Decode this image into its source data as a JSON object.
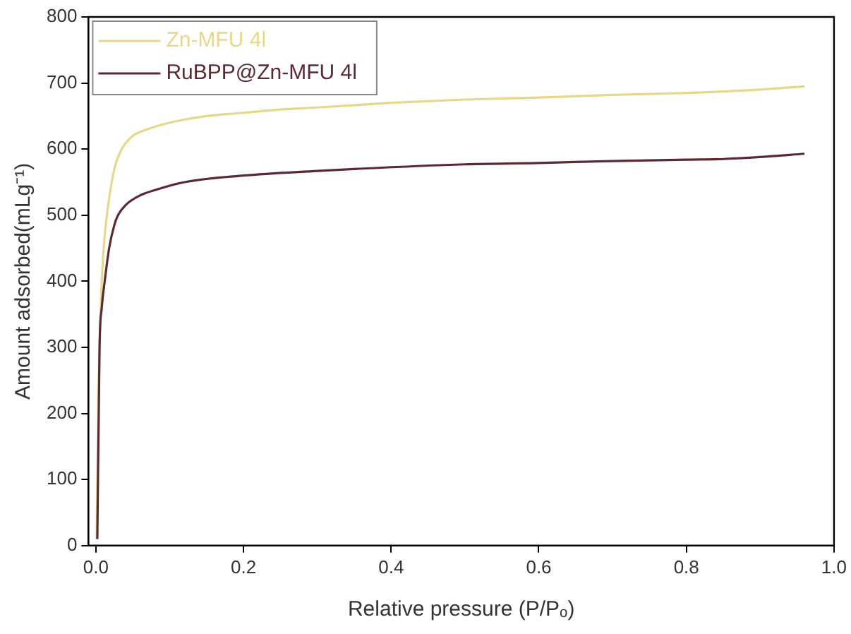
{
  "chart_data": {
    "type": "line",
    "xlabel": "Relative pressure (P/Pₒ)",
    "ylabel": "Amount adsorbed(mLg⁻¹)",
    "xlim": [
      -0.01,
      1.0
    ],
    "xticks": [
      {
        "value": 0,
        "label": "0.0"
      },
      {
        "value": 0.2,
        "label": "0.2"
      },
      {
        "value": 0.4,
        "label": "0.4"
      },
      {
        "value": 0.6,
        "label": "0.6"
      },
      {
        "value": 0.8,
        "label": "0.8"
      },
      {
        "value": 1,
        "label": "1.0"
      }
    ],
    "ylim": [
      0,
      800
    ],
    "yticks": [
      0,
      100,
      200,
      300,
      400,
      500,
      600,
      700,
      800
    ],
    "grid": false,
    "legend": "top left",
    "marker": "none",
    "line_style": "solid",
    "series": [
      {
        "name": "Zn-MFU 4l",
        "color": "#e6d88a",
        "x": [
          0.001,
          0.004,
          0.008,
          0.012,
          0.015,
          0.02,
          0.025,
          0.035,
          0.05,
          0.07,
          0.1,
          0.15,
          0.2,
          0.25,
          0.3,
          0.4,
          0.5,
          0.6,
          0.7,
          0.8,
          0.9,
          0.96
        ],
        "values": [
          10,
          250,
          400,
          470,
          500,
          540,
          570,
          600,
          620,
          630,
          640,
          650,
          655,
          660,
          663,
          670,
          675,
          678,
          682,
          685,
          690,
          695
        ]
      },
      {
        "name": "RuBPP@Zn-MFU 4l",
        "color": "#5a2a32",
        "x": [
          0.002,
          0.005,
          0.008,
          0.012,
          0.018,
          0.025,
          0.03,
          0.04,
          0.06,
          0.08,
          0.12,
          0.2,
          0.3,
          0.35,
          0.5,
          0.6,
          0.7,
          0.8,
          0.85,
          0.9,
          0.96
        ],
        "values": [
          10,
          300,
          360,
          400,
          450,
          485,
          500,
          515,
          530,
          538,
          550,
          560,
          567,
          570,
          577,
          579,
          582,
          584,
          585,
          588,
          593
        ]
      }
    ]
  }
}
